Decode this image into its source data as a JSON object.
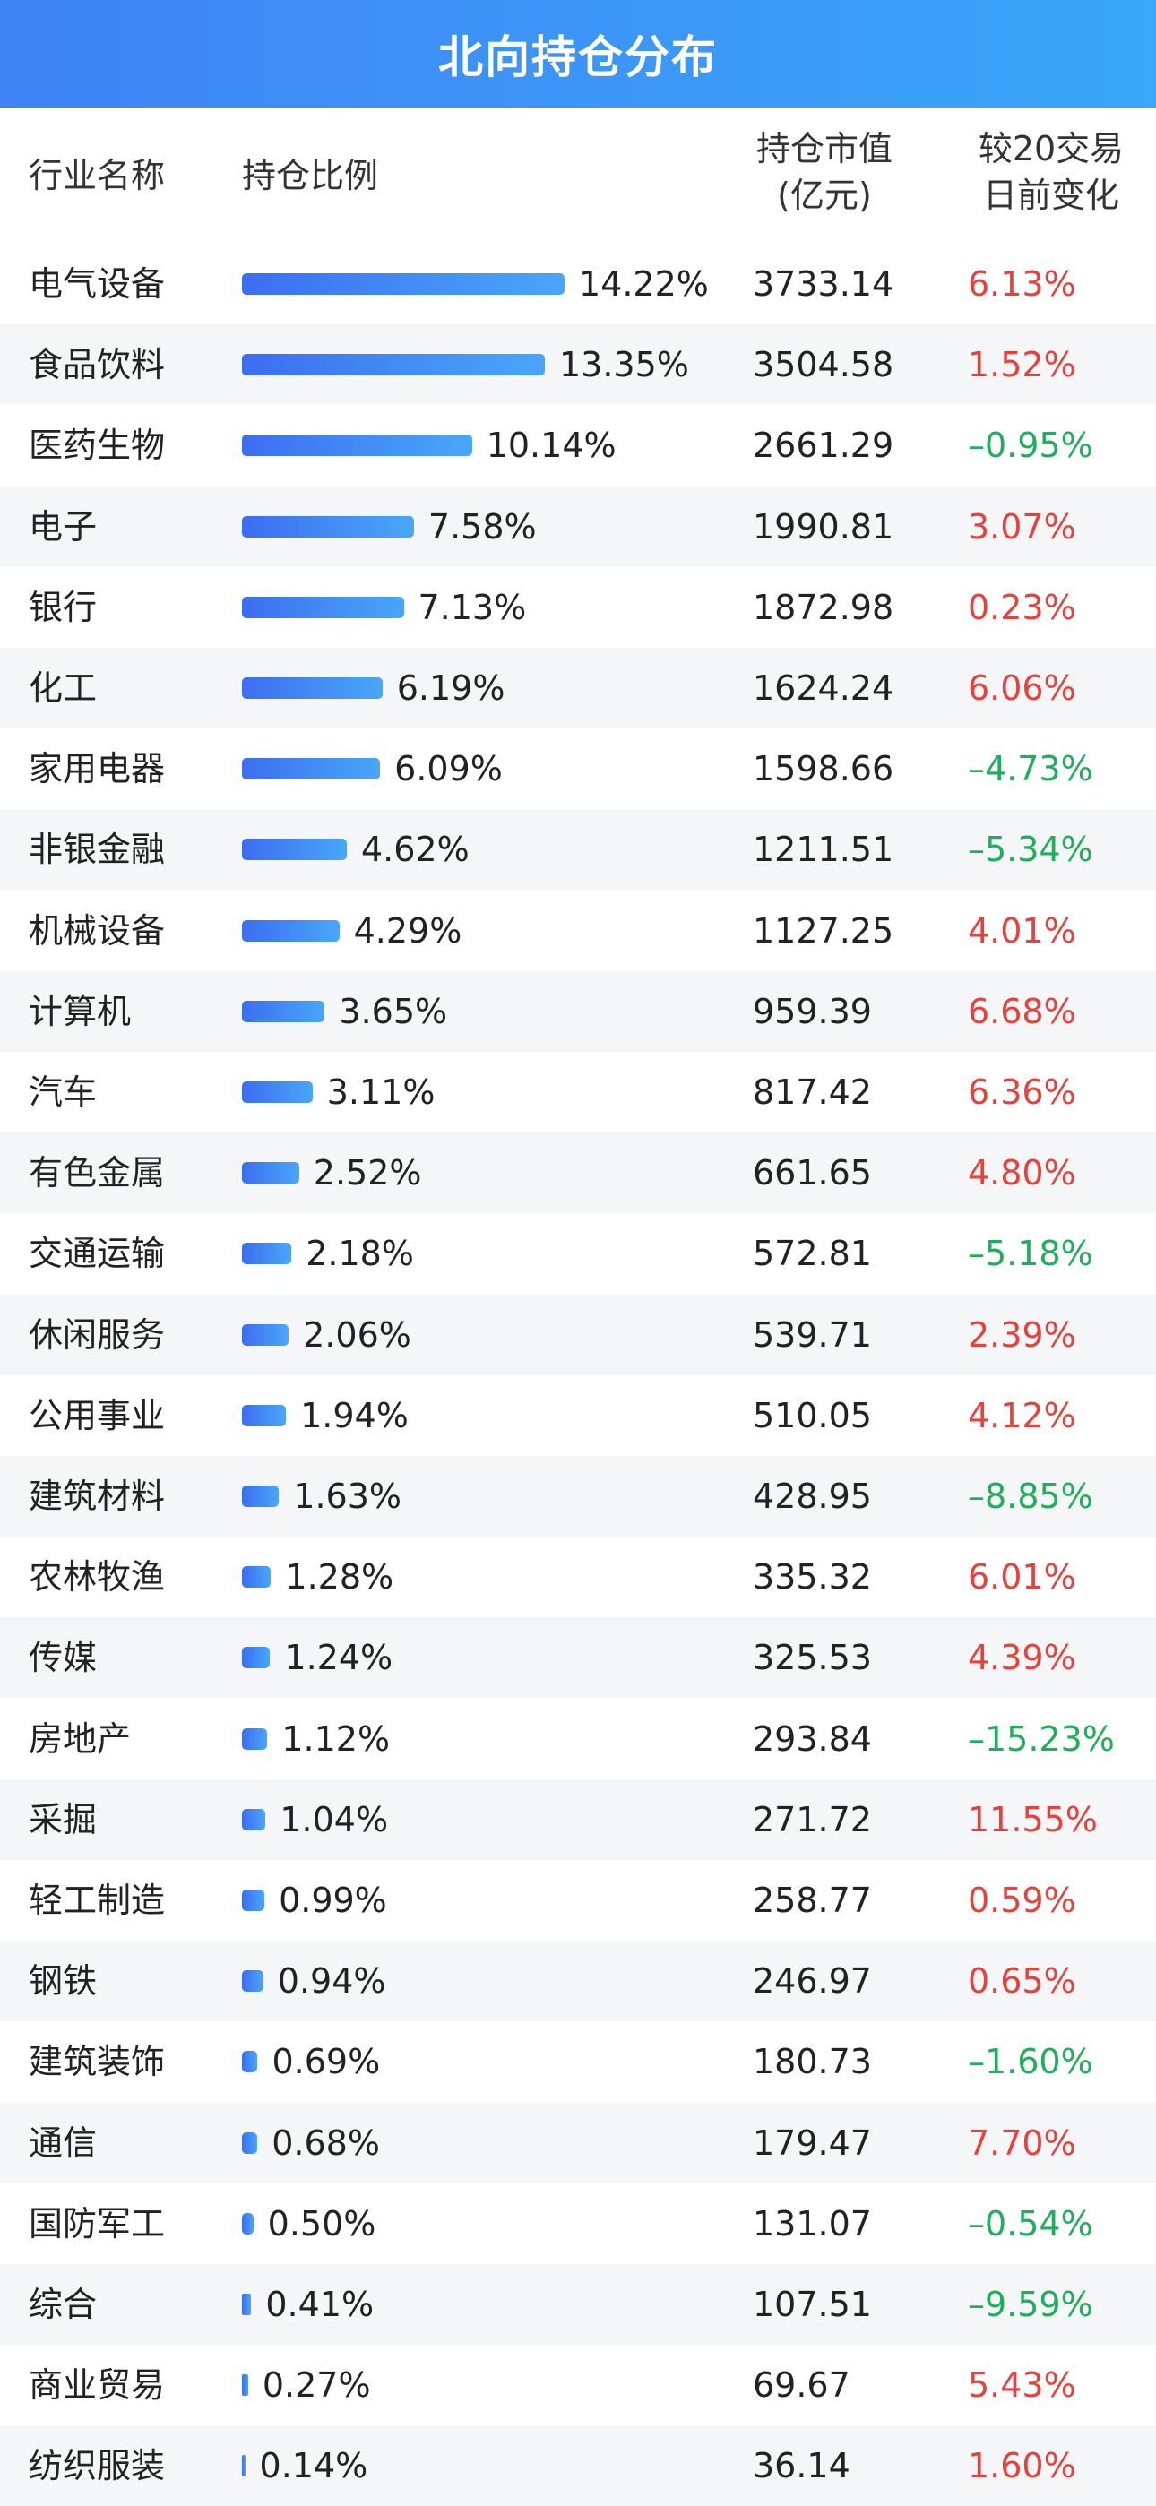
{
  "title": "北向持仓分布",
  "headers": {
    "industry": "行业名称",
    "ratio": "持仓比例",
    "value_line1": "持仓市值",
    "value_line2": "(亿元)",
    "change_line1": "较20交易",
    "change_line2": "日前变化"
  },
  "colors": {
    "header_gradient_start": "#3f83f5",
    "header_gradient_end": "#3aa7f8",
    "bar_gradient_start": "#3d6df0",
    "bar_gradient_end": "#48a7f9",
    "positive": "#e8413c",
    "negative": "#1fae5a",
    "alt_row": "#f5f6f8"
  },
  "chart_data": {
    "type": "bar",
    "title": "北向持仓分布",
    "categories": [
      "电气设备",
      "食品饮料",
      "医药生物",
      "电子",
      "银行",
      "化工",
      "家用电器",
      "非银金融",
      "机械设备",
      "计算机",
      "汽车",
      "有色金属",
      "交通运输",
      "休闲服务",
      "公用事业",
      "建筑材料",
      "农林牧渔",
      "传媒",
      "房地产",
      "采掘",
      "轻工制造",
      "钢铁",
      "建筑装饰",
      "通信",
      "国防军工",
      "综合",
      "商业贸易",
      "纺织服装"
    ],
    "series": [
      {
        "name": "持仓比例",
        "values": [
          14.22,
          13.35,
          10.14,
          7.58,
          7.13,
          6.19,
          6.09,
          4.62,
          4.29,
          3.65,
          3.11,
          2.52,
          2.18,
          2.06,
          1.94,
          1.63,
          1.28,
          1.24,
          1.12,
          1.04,
          0.99,
          0.94,
          0.69,
          0.68,
          0.5,
          0.41,
          0.27,
          0.14
        ]
      }
    ],
    "ratio_labels": [
      "14.22%",
      "13.35%",
      "10.14%",
      "7.58%",
      "7.13%",
      "6.19%",
      "6.09%",
      "4.62%",
      "4.29%",
      "3.65%",
      "3.11%",
      "2.52%",
      "2.18%",
      "2.06%",
      "1.94%",
      "1.63%",
      "1.28%",
      "1.24%",
      "1.12%",
      "1.04%",
      "0.99%",
      "0.94%",
      "0.69%",
      "0.68%",
      "0.50%",
      "0.41%",
      "0.27%",
      "0.14%"
    ],
    "market_values": [
      "3733.14",
      "3504.58",
      "2661.29",
      "1990.81",
      "1872.98",
      "1624.24",
      "1598.66",
      "1211.51",
      "1127.25",
      "959.39",
      "817.42",
      "661.65",
      "572.81",
      "539.71",
      "510.05",
      "428.95",
      "335.32",
      "325.53",
      "293.84",
      "271.72",
      "258.77",
      "246.97",
      "180.73",
      "179.47",
      "131.07",
      "107.51",
      "69.67",
      "36.14"
    ],
    "changes": [
      "6.13%",
      "1.52%",
      "–0.95%",
      "3.07%",
      "0.23%",
      "6.06%",
      "–4.73%",
      "–5.34%",
      "4.01%",
      "6.68%",
      "6.36%",
      "4.80%",
      "–5.18%",
      "2.39%",
      "4.12%",
      "–8.85%",
      "6.01%",
      "4.39%",
      "–15.23%",
      "11.55%",
      "0.59%",
      "0.65%",
      "–1.60%",
      "7.70%",
      "–0.54%",
      "–9.59%",
      "5.43%",
      "1.60%"
    ],
    "change_signs": [
      1,
      1,
      -1,
      1,
      1,
      1,
      -1,
      -1,
      1,
      1,
      1,
      1,
      -1,
      1,
      1,
      -1,
      1,
      1,
      -1,
      1,
      1,
      1,
      -1,
      1,
      -1,
      -1,
      1,
      1
    ],
    "xmax": 14.22
  }
}
